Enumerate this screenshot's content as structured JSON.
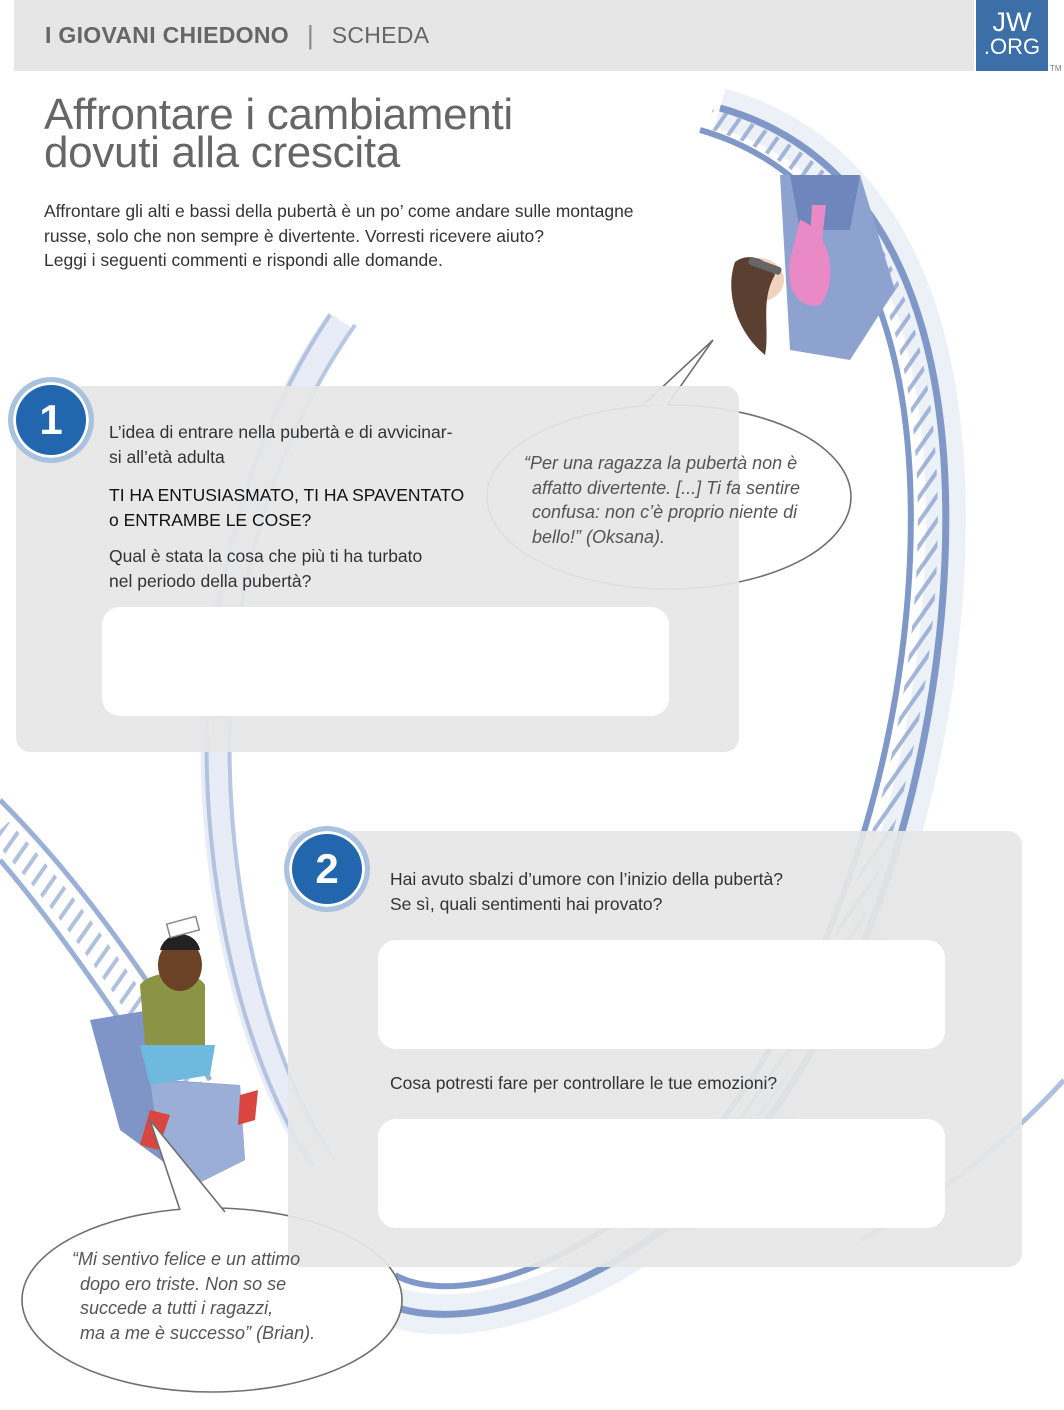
{
  "header": {
    "series": "I GIOVANI CHIEDONO",
    "divider": "|",
    "sheet_type": "SCHEDA",
    "logo_line1": "JW",
    "logo_line2": ".ORG",
    "trademark": "TM"
  },
  "title": {
    "line1": "Affrontare i cambiamenti",
    "line2": "dovuti alla crescita"
  },
  "intro": [
    "Affrontare gli alti e bassi della pubertà è un po’ come andare sulle montagne",
    "russe, solo che non sempre è divertente. Vorresti ricevere aiuto?",
    "Leggi i seguenti commenti e rispondi alle domande."
  ],
  "section1": {
    "number": "1",
    "prompt_lines": [
      "L’idea di entrare nella pubertà e di avvicinar-",
      "si all’età adulta"
    ],
    "choice_lines": [
      "TI HA ENTUSIASMATO, TI HA SPAVENTATO",
      "o ENTRAMBE LE COSE?"
    ],
    "question_lines": [
      "Qual è stata la cosa che più ti ha turbato",
      "nel periodo della pubertà?"
    ],
    "answer_value": ""
  },
  "quote1": {
    "lines": [
      "“Per una ragazza la pubertà non è",
      "affatto divertente. [...] Ti fa sentire",
      "confusa: non c’è proprio niente di",
      "bello!” (Oksana)."
    ]
  },
  "section2": {
    "number": "2",
    "question1_lines": [
      "Hai avuto sbalzi d’umore con l’inizio della pubertà?",
      "Se sì, quali sentimenti hai provato?"
    ],
    "answer1_value": "",
    "question2": "Cosa potresti fare per controllare le tue emozioni?",
    "answer2_value": ""
  },
  "quote2": {
    "lines": [
      "“Mi sentivo felice e un attimo",
      "dopo ero triste. Non so se",
      "succede a tutti i ragazzi,",
      "ma a me è successo” (Brian)."
    ]
  },
  "illustration": {
    "subject": "roller-coaster-loop",
    "figures": [
      "girl-in-coaster-car",
      "boy-in-coaster-car"
    ]
  },
  "colors": {
    "accent_blue": "#2266ad",
    "badge_ring": "#a9c2e0",
    "logo_blue": "#3c6ea8",
    "panel_gray": "#e6e6e6",
    "rail_blue": "#7f98c8",
    "heading_gray": "#666666"
  }
}
